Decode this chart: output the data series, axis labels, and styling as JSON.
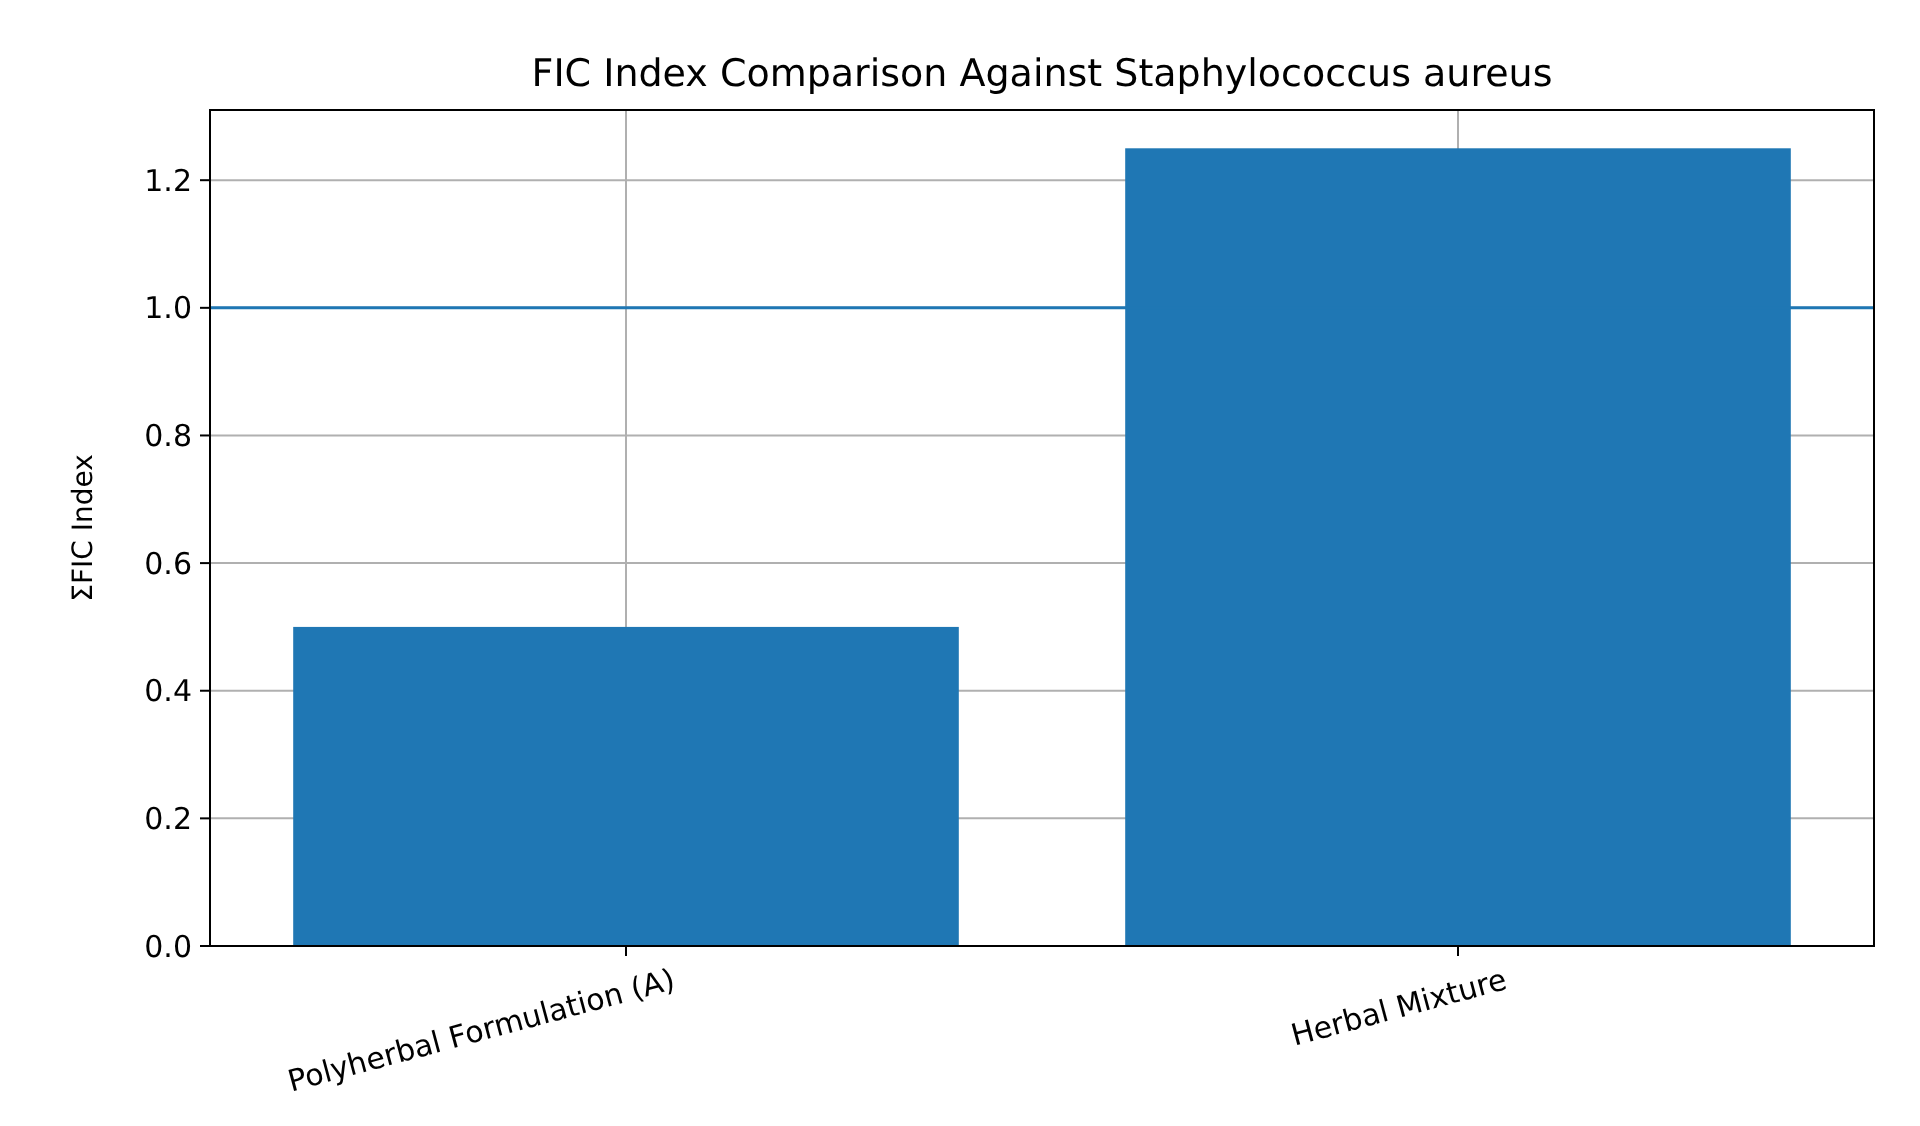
{
  "chart_data": {
    "type": "bar",
    "title": "FIC Index Comparison Against Staphylococcus aureus",
    "ylabel": "ΣFIC Index",
    "categories": [
      "Polyherbal Formulation (A)",
      "Herbal Mixture"
    ],
    "values": [
      0.5,
      1.25
    ],
    "color": "#1f77b4",
    "ylim": [
      0,
      1.31
    ],
    "yticks": [
      {
        "value": 0,
        "label": "0.0"
      },
      {
        "value": 0.2,
        "label": "0.2"
      },
      {
        "value": 0.4,
        "label": "0.4"
      },
      {
        "value": 0.6,
        "label": "0.6"
      },
      {
        "value": 0.8,
        "label": "0.8"
      },
      {
        "value": 1,
        "label": "1.0"
      },
      {
        "value": 1.2,
        "label": "1.2"
      }
    ],
    "grid": true,
    "ref_lines": [
      {
        "axis": "y",
        "value": 1,
        "color": "#1f77b4"
      }
    ]
  }
}
